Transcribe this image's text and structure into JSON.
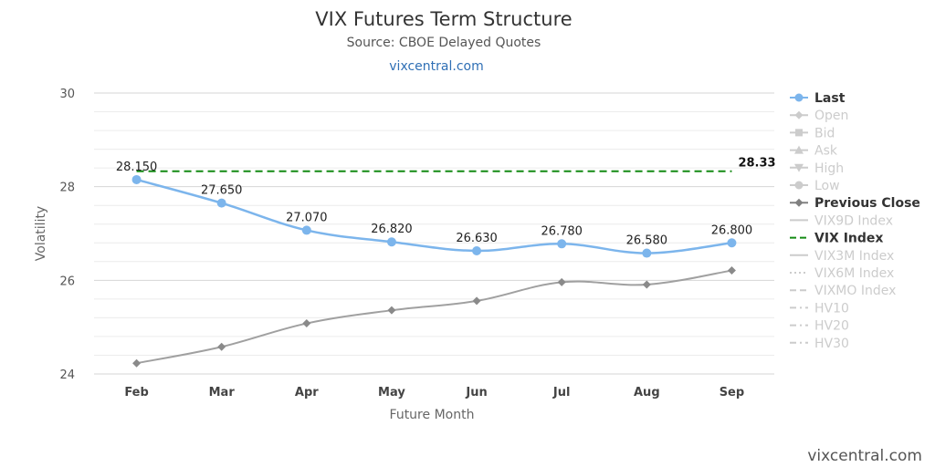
{
  "chart_data": {
    "type": "line",
    "title": "VIX Futures Term Structure",
    "subtitle": "Source: CBOE Delayed Quotes",
    "link": "vixcentral.com",
    "xlabel": "Future Month",
    "ylabel": "Volatility",
    "categories": [
      "Feb",
      "Mar",
      "Apr",
      "May",
      "Jun",
      "Jul",
      "Aug",
      "Sep"
    ],
    "ylim": [
      24,
      30
    ],
    "yticks": [
      24,
      26,
      28,
      30
    ],
    "grid": true,
    "legend_position": "right",
    "series": [
      {
        "name": "Last",
        "values": [
          28.15,
          27.65,
          27.07,
          26.82,
          26.63,
          26.78,
          26.58,
          26.8
        ],
        "labels": [
          "28.150",
          "27.650",
          "27.070",
          "26.820",
          "26.630",
          "26.780",
          "26.580",
          "26.800"
        ],
        "color": "#7cb5ec"
      },
      {
        "name": "Previous Close",
        "values": [
          24.23,
          24.58,
          25.08,
          25.36,
          25.56,
          25.96,
          25.91,
          26.21
        ],
        "color": "#a0a0a0"
      },
      {
        "name": "VIX Index",
        "values": [
          28.33,
          28.33,
          28.33,
          28.33,
          28.33,
          28.33,
          28.33,
          28.33
        ],
        "label": "28.33",
        "color": "#138a13"
      }
    ],
    "legend": [
      {
        "name": "Last",
        "active": true,
        "symbol": "circle",
        "color": "#7cb5ec"
      },
      {
        "name": "Open",
        "active": false,
        "symbol": "diamond"
      },
      {
        "name": "Bid",
        "active": false,
        "symbol": "square"
      },
      {
        "name": "Ask",
        "active": false,
        "symbol": "triangle"
      },
      {
        "name": "High",
        "active": false,
        "symbol": "triangle-down"
      },
      {
        "name": "Low",
        "active": false,
        "symbol": "circle"
      },
      {
        "name": "Previous Close",
        "active": true,
        "symbol": "diamond",
        "color": "#808080"
      },
      {
        "name": "VIX9D Index",
        "active": false,
        "symbol": "solid"
      },
      {
        "name": "VIX Index",
        "active": true,
        "symbol": "dash",
        "color": "#138a13"
      },
      {
        "name": "VIX3M Index",
        "active": false,
        "symbol": "solid"
      },
      {
        "name": "VIX6M Index",
        "active": false,
        "symbol": "dot"
      },
      {
        "name": "VIXMO Index",
        "active": false,
        "symbol": "dash"
      },
      {
        "name": "HV10",
        "active": false,
        "symbol": "dashdot"
      },
      {
        "name": "HV20",
        "active": false,
        "symbol": "dashdot"
      },
      {
        "name": "HV30",
        "active": false,
        "symbol": "dashdot"
      }
    ],
    "credit": "vixcentral.com"
  }
}
